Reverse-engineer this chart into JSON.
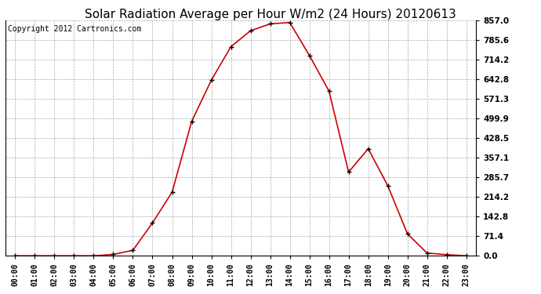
{
  "title": "Solar Radiation Average per Hour W/m2 (24 Hours) 20120613",
  "copyright_text": "Copyright 2012 Cartronics.com",
  "hours": [
    "00:00",
    "01:00",
    "02:00",
    "03:00",
    "04:00",
    "05:00",
    "06:00",
    "07:00",
    "08:00",
    "09:00",
    "10:00",
    "11:00",
    "12:00",
    "13:00",
    "14:00",
    "15:00",
    "16:00",
    "17:00",
    "18:00",
    "19:00",
    "20:00",
    "21:00",
    "22:00",
    "23:00"
  ],
  "values": [
    0.0,
    0.0,
    0.0,
    0.0,
    0.0,
    5.0,
    20.0,
    120.0,
    232.0,
    490.0,
    640.0,
    762.0,
    820.0,
    845.0,
    850.0,
    730.0,
    600.0,
    305.0,
    390.0,
    255.0,
    80.0,
    10.0,
    4.0,
    0.0
  ],
  "line_color": "#cc0000",
  "marker": "+",
  "marker_color": "#000000",
  "background_color": "#ffffff",
  "grid_color": "#aaaaaa",
  "title_fontsize": 11,
  "copyright_fontsize": 7,
  "ytick_labels": [
    "0.0",
    "71.4",
    "142.8",
    "214.2",
    "285.7",
    "357.1",
    "428.5",
    "499.9",
    "571.3",
    "642.8",
    "714.2",
    "785.6",
    "857.0"
  ],
  "ytick_values": [
    0.0,
    71.4,
    142.8,
    214.2,
    285.7,
    357.1,
    428.5,
    499.9,
    571.3,
    642.8,
    714.2,
    785.6,
    857.0
  ],
  "ylim": [
    0.0,
    857.0
  ],
  "figsize": [
    6.9,
    3.75
  ],
  "dpi": 100
}
